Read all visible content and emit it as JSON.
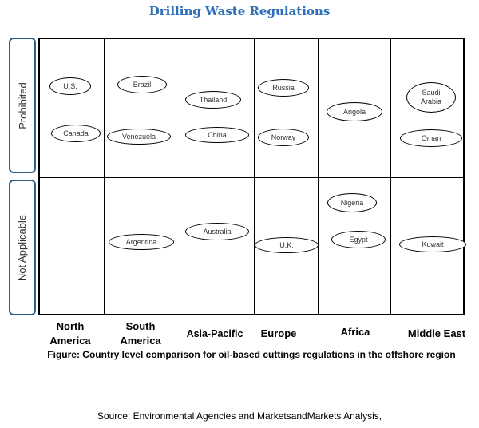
{
  "title": "Drilling Waste Regulations",
  "rows": {
    "prohibited": "Prohibited",
    "not_applicable": "Not Applicable"
  },
  "columns": [
    "North America",
    "South America",
    "Asia-Pacific",
    "Europe",
    "Africa",
    "Middle East"
  ],
  "countries": {
    "us": "U.S.",
    "canada": "Canada",
    "brazil": "Brazil",
    "venezuela": "Venezuela",
    "thailand": "Thailand",
    "china": "China",
    "russia": "Russia",
    "norway": "Norway",
    "angola": "Angola",
    "saudi_arabia": "Saudi Arabia",
    "oman": "Oman",
    "argentina": "Argentina",
    "australia": "Australia",
    "uk": "U.K.",
    "nigeria": "Nigeria",
    "egypt": "Egypt",
    "kuwait": "Kuwait"
  },
  "caption": "Figure: Country level comparison for oil-based cuttings regulations in the offshore region",
  "source": "Source: Environmental Agencies and MarketsandMarkets Analysis,"
}
